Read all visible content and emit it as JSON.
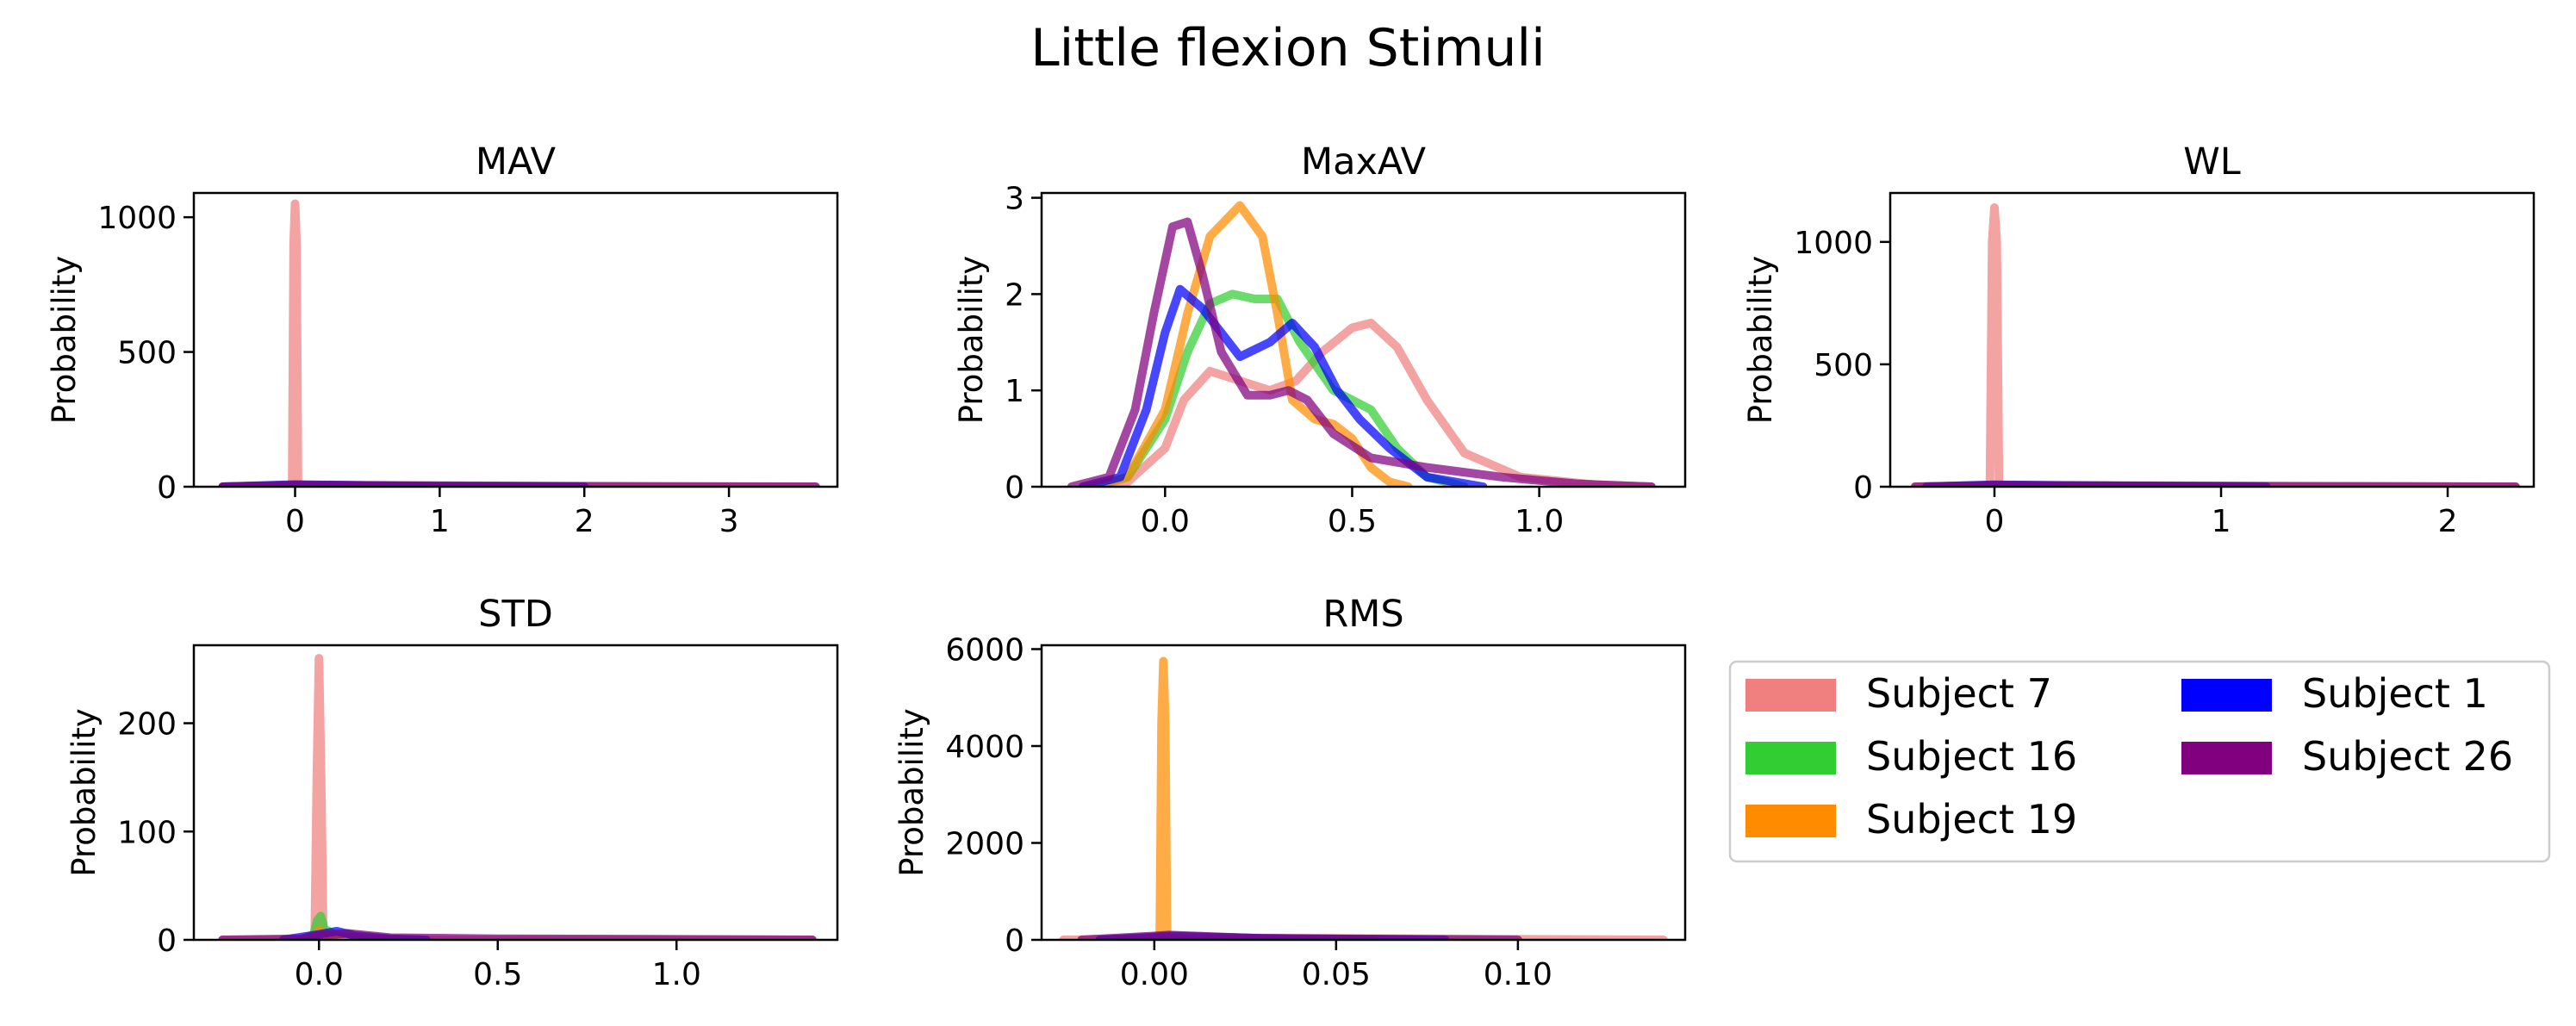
{
  "figure": {
    "title": "Little flexion Stimuli"
  },
  "series_colors": {
    "Subject 7": "#F08080",
    "Subject 16": "#32CD32",
    "Subject 19": "#FF8C00",
    "Subject 1": "#0000FF",
    "Subject 26": "#800080"
  },
  "legend": {
    "placement": "lower-right panel",
    "columns": 2,
    "entries": [
      {
        "name": "Subject 7",
        "color": "#F08080"
      },
      {
        "name": "Subject 16",
        "color": "#32CD32"
      },
      {
        "name": "Subject 19",
        "color": "#FF8C00"
      },
      {
        "name": "Subject 1",
        "color": "#0000FF"
      },
      {
        "name": "Subject 26",
        "color": "#800080"
      }
    ]
  },
  "chart_data": [
    {
      "type": "line",
      "title": "MAV",
      "xlabel": "",
      "ylabel": "Probability",
      "xlim": [
        -0.7,
        3.75
      ],
      "ylim": [
        0,
        1090
      ],
      "xticks": [
        0,
        1,
        2,
        3
      ],
      "xtick_labels": [
        "0",
        "1",
        "2",
        "3"
      ],
      "yticks": [
        0,
        500,
        1000
      ],
      "ytick_labels": [
        "0",
        "500",
        "1000"
      ],
      "series": [
        {
          "name": "Subject 7",
          "x": [
            -0.5,
            -0.02,
            -0.01,
            0,
            0.01,
            0.02,
            3.6
          ],
          "y": [
            0,
            0,
            900,
            1050,
            900,
            0,
            0
          ]
        },
        {
          "name": "Subject 16",
          "x": [
            -0.5,
            0,
            0.5,
            1,
            2
          ],
          "y": [
            0,
            6,
            4,
            2,
            0
          ]
        },
        {
          "name": "Subject 19",
          "x": [
            -0.5,
            0,
            0.5,
            1,
            2
          ],
          "y": [
            0,
            5,
            4,
            2,
            0
          ]
        },
        {
          "name": "Subject 1",
          "x": [
            -0.5,
            0,
            0.5,
            1,
            2
          ],
          "y": [
            0,
            8,
            5,
            2,
            0
          ]
        },
        {
          "name": "Subject 26",
          "x": [
            -0.5,
            0,
            1,
            2,
            3.6
          ],
          "y": [
            0,
            6,
            4,
            2,
            0
          ]
        }
      ]
    },
    {
      "type": "line",
      "title": "MaxAV",
      "xlabel": "",
      "ylabel": "Probability",
      "xlim": [
        -0.33,
        1.39
      ],
      "ylim": [
        0,
        3.05
      ],
      "xticks": [
        0,
        0.5,
        1
      ],
      "xtick_labels": [
        "0.0",
        "0.5",
        "1.0"
      ],
      "yticks": [
        0,
        1,
        2,
        3
      ],
      "ytick_labels": [
        "0",
        "1",
        "2",
        "3"
      ],
      "series": [
        {
          "name": "Subject 7",
          "x": [
            -0.22,
            -0.1,
            0,
            0.05,
            0.12,
            0.2,
            0.28,
            0.35,
            0.42,
            0.5,
            0.55,
            0.62,
            0.7,
            0.8,
            0.95,
            1.15,
            1.3
          ],
          "y": [
            0,
            0.05,
            0.4,
            0.9,
            1.2,
            1.1,
            1.0,
            1.1,
            1.4,
            1.65,
            1.7,
            1.45,
            0.9,
            0.35,
            0.1,
            0.02,
            0
          ]
        },
        {
          "name": "Subject 16",
          "x": [
            -0.2,
            -0.1,
            0,
            0.06,
            0.12,
            0.18,
            0.24,
            0.3,
            0.36,
            0.45,
            0.55,
            0.62,
            0.7,
            0.8
          ],
          "y": [
            0,
            0.1,
            0.7,
            1.4,
            1.9,
            2.0,
            1.95,
            1.95,
            1.5,
            1.0,
            0.8,
            0.4,
            0.1,
            0
          ]
        },
        {
          "name": "Subject 19",
          "x": [
            -0.18,
            -0.1,
            0,
            0.06,
            0.12,
            0.2,
            0.26,
            0.3,
            0.34,
            0.4,
            0.45,
            0.5,
            0.55,
            0.6,
            0.65
          ],
          "y": [
            0,
            0.1,
            0.8,
            1.8,
            2.6,
            2.92,
            2.6,
            1.8,
            0.9,
            0.7,
            0.65,
            0.5,
            0.2,
            0.05,
            0
          ]
        },
        {
          "name": "Subject 1",
          "x": [
            -0.22,
            -0.12,
            -0.05,
            0,
            0.04,
            0.1,
            0.15,
            0.2,
            0.28,
            0.34,
            0.4,
            0.46,
            0.52,
            0.6,
            0.7,
            0.85
          ],
          "y": [
            0,
            0.1,
            0.8,
            1.6,
            2.05,
            1.85,
            1.6,
            1.35,
            1.5,
            1.7,
            1.45,
            1.0,
            0.7,
            0.4,
            0.1,
            0
          ]
        },
        {
          "name": "Subject 26",
          "x": [
            -0.25,
            -0.15,
            -0.08,
            -0.03,
            0.02,
            0.06,
            0.1,
            0.15,
            0.22,
            0.28,
            0.33,
            0.38,
            0.45,
            0.55,
            0.7,
            0.9,
            1.1,
            1.3
          ],
          "y": [
            0,
            0.1,
            0.8,
            1.8,
            2.7,
            2.75,
            2.2,
            1.4,
            0.95,
            0.95,
            1.0,
            0.9,
            0.55,
            0.3,
            0.2,
            0.1,
            0.03,
            0
          ]
        }
      ]
    },
    {
      "type": "line",
      "title": "WL",
      "xlabel": "",
      "ylabel": "Probability",
      "xlim": [
        -0.46,
        2.38
      ],
      "ylim": [
        0,
        1200
      ],
      "xticks": [
        0,
        1,
        2
      ],
      "xtick_labels": [
        "0",
        "1",
        "2"
      ],
      "yticks": [
        0,
        500,
        1000
      ],
      "ytick_labels": [
        "0",
        "500",
        "1000"
      ],
      "series": [
        {
          "name": "Subject 7",
          "x": [
            -0.35,
            -0.02,
            -0.01,
            0,
            0.01,
            0.02,
            2.3
          ],
          "y": [
            0,
            0,
            1000,
            1140,
            1000,
            0,
            0
          ]
        },
        {
          "name": "Subject 16",
          "x": [
            -0.3,
            0,
            0.5,
            1.2
          ],
          "y": [
            0,
            6,
            4,
            0
          ]
        },
        {
          "name": "Subject 19",
          "x": [
            -0.3,
            0,
            0.5,
            1.2
          ],
          "y": [
            0,
            5,
            3,
            0
          ]
        },
        {
          "name": "Subject 1",
          "x": [
            -0.3,
            0,
            0.5,
            1.2
          ],
          "y": [
            0,
            8,
            4,
            0
          ]
        },
        {
          "name": "Subject 26",
          "x": [
            -0.35,
            0,
            0.7,
            2.3
          ],
          "y": [
            0,
            6,
            4,
            0
          ]
        }
      ]
    },
    {
      "type": "line",
      "title": "STD",
      "xlabel": "",
      "ylabel": "Probability",
      "xlim": [
        -0.35,
        1.45
      ],
      "ylim": [
        0,
        272
      ],
      "xticks": [
        0,
        0.5,
        1
      ],
      "xtick_labels": [
        "0.0",
        "0.5",
        "1.0"
      ],
      "yticks": [
        0,
        100,
        200
      ],
      "ytick_labels": [
        "0",
        "100",
        "200"
      ],
      "series": [
        {
          "name": "Subject 7",
          "x": [
            -0.27,
            -0.012,
            -0.006,
            0,
            0.006,
            0.012,
            1.38
          ],
          "y": [
            0,
            0,
            150,
            260,
            150,
            0,
            0
          ]
        },
        {
          "name": "Subject 16",
          "x": [
            -0.05,
            -0.015,
            -0.005,
            0.005,
            0.015,
            0.05,
            0.15,
            0.3
          ],
          "y": [
            0,
            5,
            18,
            22,
            10,
            4,
            1,
            0
          ]
        },
        {
          "name": "Subject 19",
          "x": [
            -0.05,
            -0.01,
            0,
            0.01,
            0.05,
            0.2
          ],
          "y": [
            0,
            4,
            9,
            7,
            2,
            0
          ]
        },
        {
          "name": "Subject 1",
          "x": [
            -0.1,
            0,
            0.05,
            0.1,
            0.2,
            0.3
          ],
          "y": [
            0,
            5,
            8,
            4,
            1,
            0
          ]
        },
        {
          "name": "Subject 26",
          "x": [
            -0.27,
            -0.05,
            0,
            0.08,
            0.2,
            0.5,
            1.0,
            1.38
          ],
          "y": [
            0,
            1,
            4,
            6,
            2,
            1,
            0.5,
            0
          ]
        }
      ]
    },
    {
      "type": "line",
      "title": "RMS",
      "xlabel": "",
      "ylabel": "Probability",
      "xlim": [
        -0.031,
        0.146
      ],
      "ylim": [
        0,
        6080
      ],
      "xticks": [
        0,
        0.05,
        0.1
      ],
      "xtick_labels": [
        "0.00",
        "0.05",
        "0.10"
      ],
      "yticks": [
        0,
        2000,
        4000,
        6000
      ],
      "ytick_labels": [
        "0",
        "2000",
        "4000",
        "6000"
      ],
      "series": [
        {
          "name": "Subject 7",
          "x": [
            -0.025,
            0,
            0.02,
            0.08,
            0.14
          ],
          "y": [
            0,
            20,
            40,
            20,
            0
          ]
        },
        {
          "name": "Subject 16",
          "x": [
            -0.015,
            0,
            0.02,
            0.06
          ],
          "y": [
            0,
            40,
            20,
            0
          ]
        },
        {
          "name": "Subject 19",
          "x": [
            -0.01,
            0.0015,
            0.002,
            0.0025,
            0.003,
            0.0035,
            0.06
          ],
          "y": [
            0,
            0,
            4500,
            5750,
            4500,
            0,
            0
          ]
        },
        {
          "name": "Subject 1",
          "x": [
            -0.015,
            0,
            0.005,
            0.03,
            0.08
          ],
          "y": [
            0,
            60,
            80,
            30,
            0
          ]
        },
        {
          "name": "Subject 26",
          "x": [
            -0.02,
            0,
            0.004,
            0.03,
            0.1
          ],
          "y": [
            0,
            80,
            100,
            30,
            0
          ]
        }
      ]
    }
  ]
}
